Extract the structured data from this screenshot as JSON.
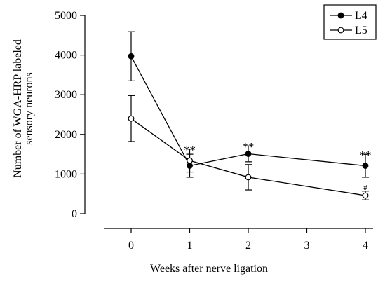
{
  "chart_data": {
    "type": "line",
    "x": [
      0,
      1,
      2,
      4
    ],
    "xticks": [
      "0",
      "1",
      "2",
      "3",
      "4"
    ],
    "xlabel": "Weeks after nerve ligation",
    "ylabel_line1": "Number of WGA-HRP labeled",
    "ylabel_line2": "sensory neurons",
    "yticks": [
      "0",
      "1000",
      "2000",
      "3000",
      "4000",
      "5000"
    ],
    "xlim": [
      -0.5,
      4.5
    ],
    "ylim": [
      0,
      5000
    ],
    "legend_position": "top-right",
    "series": [
      {
        "name": "L4",
        "marker": "filled-circle",
        "values": [
          3970,
          1210,
          1510,
          1210
        ],
        "errors": [
          620,
          290,
          200,
          290
        ]
      },
      {
        "name": "L5",
        "marker": "open-circle",
        "values": [
          2400,
          1340,
          920,
          460
        ],
        "errors": [
          580,
          290,
          320,
          110
        ]
      }
    ],
    "annotations": [
      {
        "x": 1,
        "y": 1650,
        "text": "**"
      },
      {
        "x": 2,
        "y": 1730,
        "text": "**"
      },
      {
        "x": 4,
        "y": 1520,
        "text": "**"
      },
      {
        "x": 4,
        "y": 600,
        "text": "#"
      }
    ]
  }
}
